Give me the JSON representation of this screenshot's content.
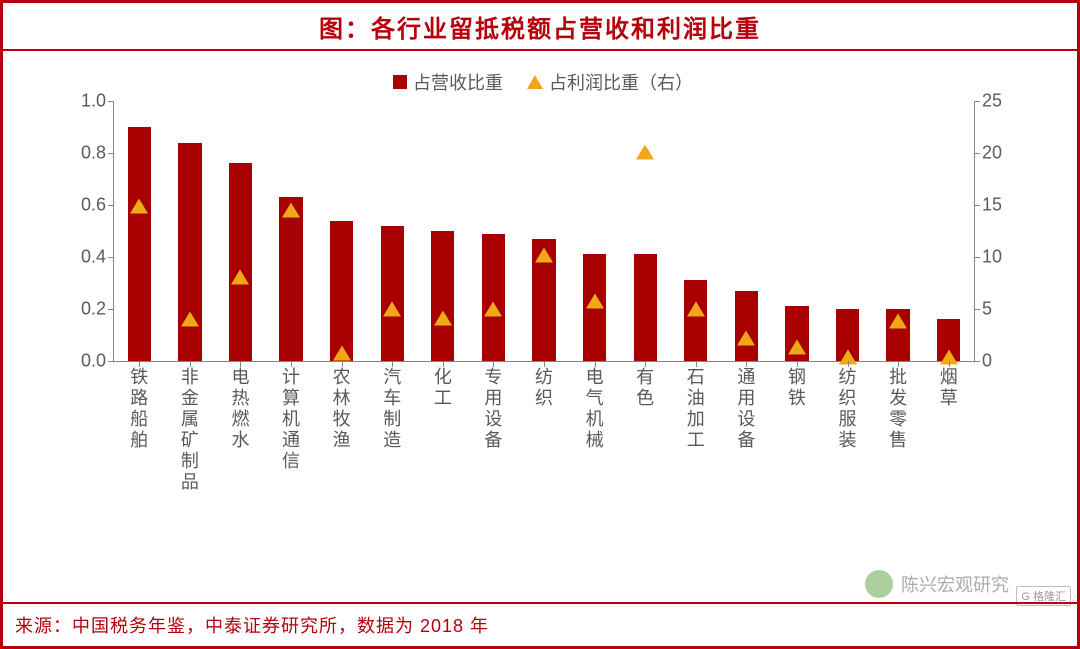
{
  "title": "图：各行业留抵税额占营收和利润比重",
  "source": "来源：中国税务年鉴，中泰证券研究所，数据为 2018 年",
  "watermark_text": "陈兴宏观研究",
  "corner_badge": "G 格隆汇",
  "legend": {
    "bar_label": "占营收比重",
    "tri_label": "占利润比重（右）"
  },
  "colors": {
    "frame": "#b6000b",
    "bar": "#a80000",
    "marker": "#f0a818",
    "axis": "#858585",
    "text": "#5a5a5a",
    "bg": "#ffffff"
  },
  "chart": {
    "type": "bar+scatter-dual-axis",
    "categories": [
      "铁路船舶",
      "非金属矿制品",
      "电热燃水",
      "计算机通信",
      "农林牧渔",
      "汽车制造",
      "化工",
      "专用设备",
      "纺织",
      "电气机械",
      "有色",
      "石油加工",
      "通用设备",
      "钢铁",
      "纺织服装",
      "批发零售",
      "烟草"
    ],
    "bar_values": [
      0.9,
      0.84,
      0.76,
      0.63,
      0.54,
      0.52,
      0.5,
      0.49,
      0.47,
      0.41,
      0.41,
      0.31,
      0.27,
      0.21,
      0.2,
      0.2,
      0.16
    ],
    "marker_values": [
      16.3,
      5.5,
      9.5,
      16.0,
      2.2,
      6.4,
      5.6,
      6.4,
      11.6,
      7.2,
      21.5,
      6.4,
      3.7,
      2.8,
      1.8,
      5.3,
      1.8
    ],
    "y_left": {
      "min": 0.0,
      "max": 1.0,
      "ticks": [
        0.0,
        0.2,
        0.4,
        0.6,
        0.8,
        1.0
      ],
      "labels": [
        "0.0",
        "0.2",
        "0.4",
        "0.6",
        "0.8",
        "1.0"
      ]
    },
    "y_right": {
      "min": 0,
      "max": 25,
      "ticks": [
        0,
        5,
        10,
        15,
        20,
        25
      ],
      "labels": [
        "0",
        "5",
        "10",
        "15",
        "20",
        "25"
      ]
    },
    "bar_width_ratio": 0.46,
    "font_size_axis": 18,
    "font_size_title": 24,
    "font_size_legend": 18
  }
}
